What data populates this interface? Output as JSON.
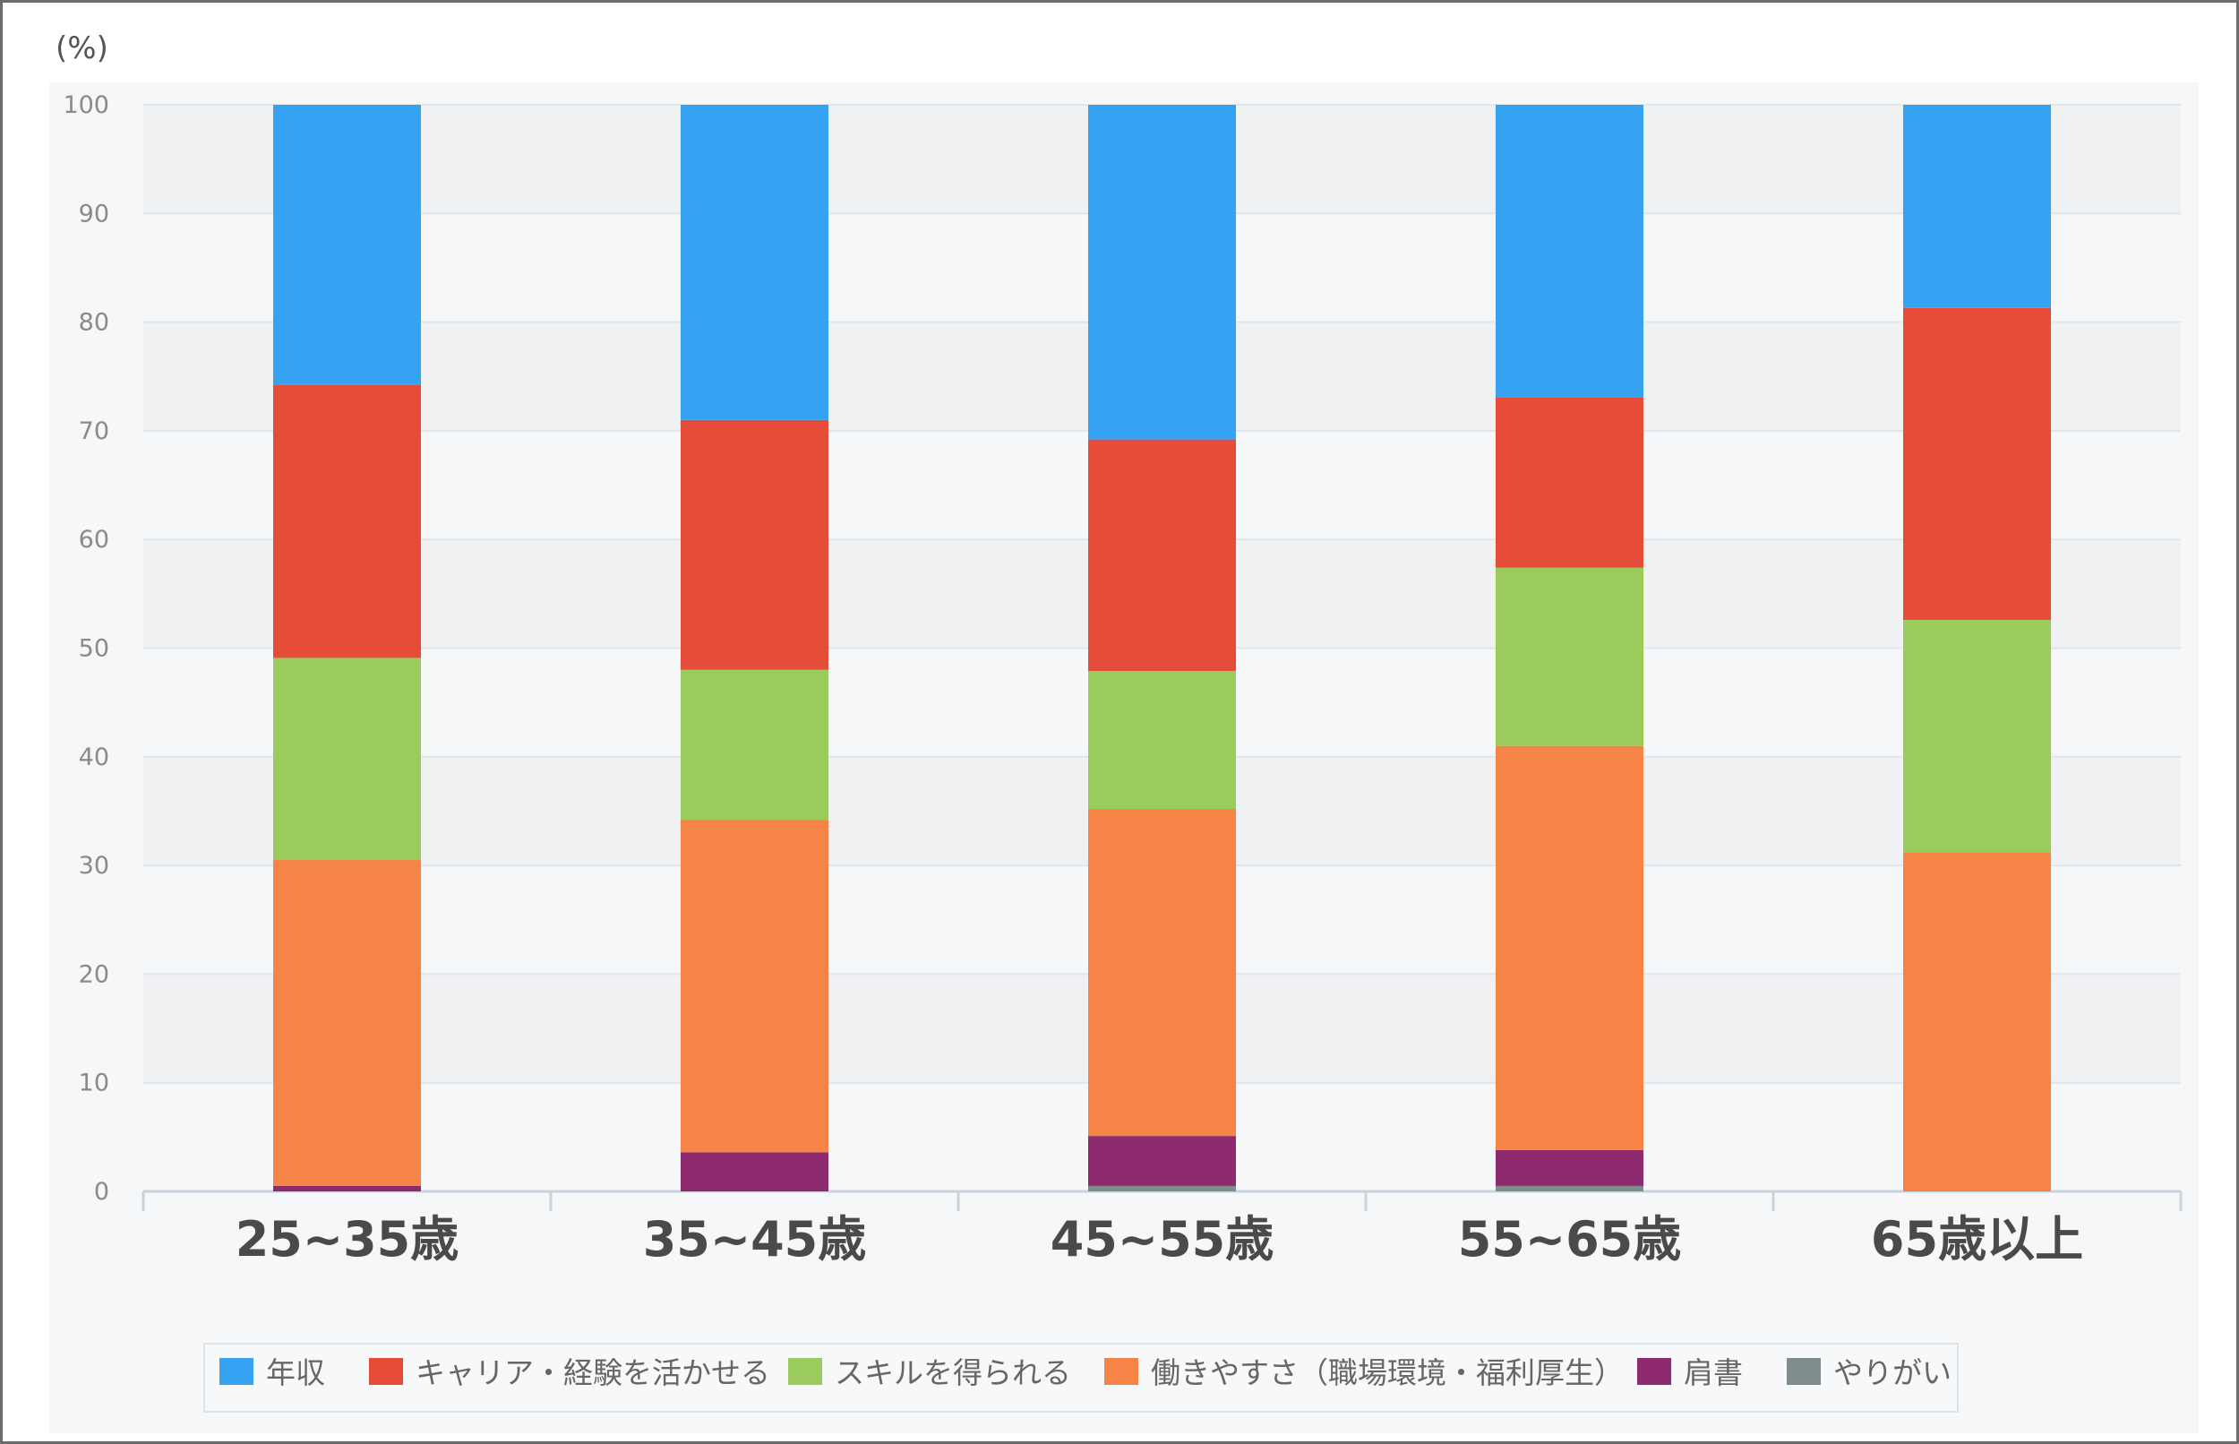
{
  "chart_data": {
    "type": "bar",
    "stacked": true,
    "unit_label": "(%)",
    "ylim": [
      0,
      100
    ],
    "yticks": [
      "0",
      "10",
      "20",
      "30",
      "40",
      "50",
      "60",
      "70",
      "80",
      "90",
      "100"
    ],
    "grid": true,
    "legend_position": "bottom",
    "categories": [
      "25~35歳",
      "35~45歳",
      "45~55歳",
      "55~65歳",
      "65歳以上"
    ],
    "series": [
      {
        "name": "やりがい",
        "color": "#7f8c8d",
        "values": [
          0,
          0,
          0.5,
          0.5,
          0
        ]
      },
      {
        "name": "肩書",
        "color": "#8e2a6e",
        "values": [
          0.5,
          3.6,
          4.6,
          3.3,
          0
        ]
      },
      {
        "name": "働きやすさ（職場環境・福利厚生）",
        "color": "#f58446",
        "values": [
          30.0,
          30.6,
          30.1,
          37.2,
          31.2
        ]
      },
      {
        "name": "スキルを得られる",
        "color": "#9ccb5d",
        "values": [
          18.6,
          13.8,
          12.7,
          16.4,
          21.4
        ]
      },
      {
        "name": "キャリア・経験を活かせる",
        "color": "#e54c3a",
        "values": [
          25.1,
          23.0,
          21.3,
          15.7,
          28.7
        ]
      },
      {
        "name": "年収",
        "color": "#36a3f2",
        "values": [
          25.8,
          29.0,
          30.8,
          26.9,
          18.7
        ]
      }
    ],
    "legend_order": [
      "年収",
      "キャリア・経験を活かせる",
      "スキルを得られる",
      "働きやすさ（職場環境・福利厚生）",
      "肩書",
      "やりがい"
    ]
  }
}
